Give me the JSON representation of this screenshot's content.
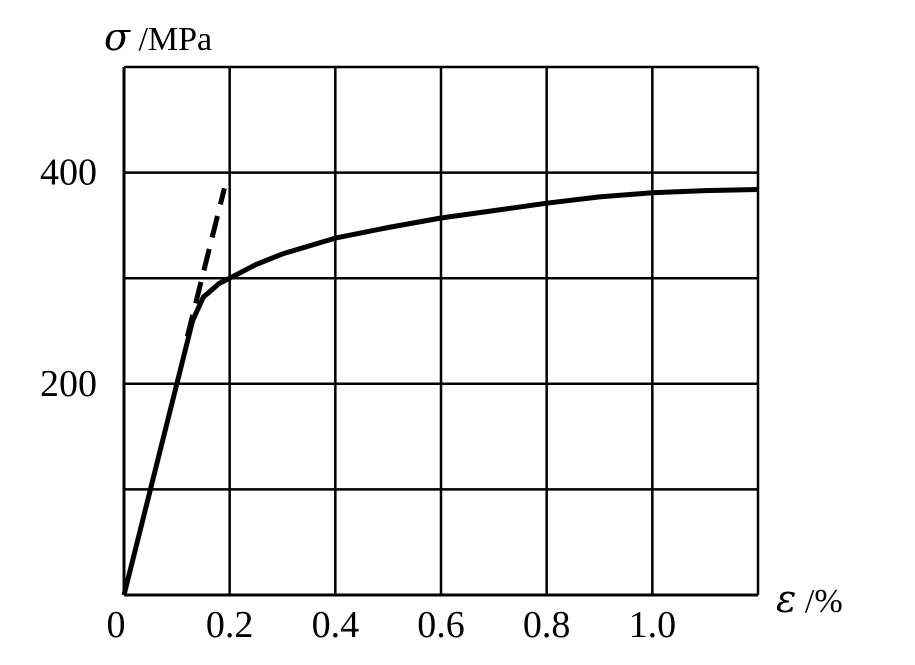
{
  "chart_data": {
    "type": "line",
    "xlabel_symbol": "ε",
    "xlabel_unit": " /%",
    "ylabel_symbol": "σ",
    "ylabel_unit": " /MPa",
    "xlim": [
      0,
      1.2
    ],
    "ylim": [
      0,
      500
    ],
    "grid": true,
    "x_tick_labels": [
      {
        "value": 0,
        "label": "0"
      },
      {
        "value": 0.2,
        "label": "0.2"
      },
      {
        "value": 0.4,
        "label": "0.4"
      },
      {
        "value": 0.6,
        "label": "0.6"
      },
      {
        "value": 0.8,
        "label": "0.8"
      },
      {
        "value": 1.0,
        "label": "1.0"
      }
    ],
    "y_tick_labels": [
      {
        "value": 200,
        "label": "200"
      },
      {
        "value": 400,
        "label": "400"
      }
    ],
    "x_gridlines": [
      0.2,
      0.4,
      0.6,
      0.8,
      1.0,
      1.2
    ],
    "y_gridlines": [
      100,
      200,
      300,
      400,
      500
    ],
    "series": [
      {
        "style": "solid",
        "color": "#000000",
        "points": [
          [
            0.0,
            0
          ],
          [
            0.13,
            260
          ],
          [
            0.15,
            282
          ],
          [
            0.18,
            295
          ],
          [
            0.2,
            300
          ],
          [
            0.25,
            313
          ],
          [
            0.3,
            323
          ],
          [
            0.4,
            338
          ],
          [
            0.5,
            348
          ],
          [
            0.6,
            357
          ],
          [
            0.7,
            364
          ],
          [
            0.8,
            371
          ],
          [
            0.9,
            377
          ],
          [
            1.0,
            381
          ],
          [
            1.1,
            383
          ],
          [
            1.2,
            384
          ]
        ]
      },
      {
        "style": "dashed",
        "color": "#000000",
        "points": [
          [
            0.12,
            245
          ],
          [
            0.19,
            385
          ]
        ]
      }
    ]
  }
}
